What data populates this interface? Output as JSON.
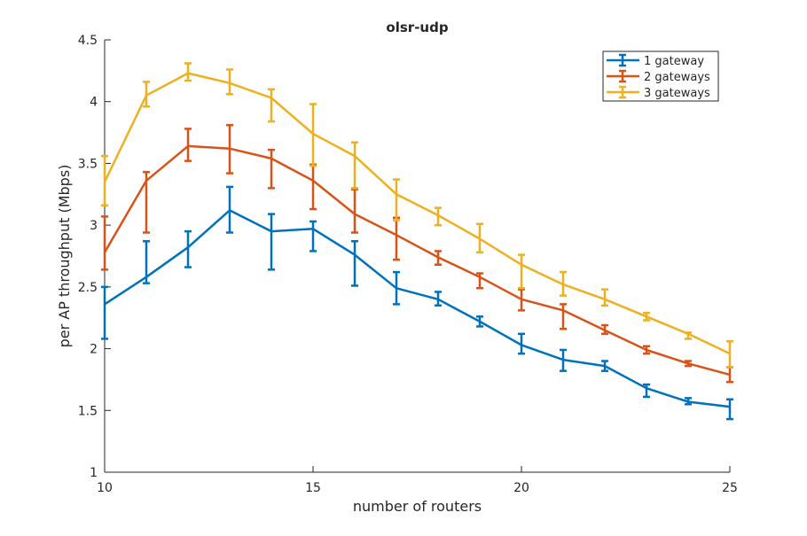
{
  "chart_data": {
    "type": "line",
    "title": "olsr-udp",
    "xlabel": "number of routers",
    "ylabel": "per AP throughput (Mbps)",
    "xlim": [
      10,
      25
    ],
    "ylim": [
      1,
      4.5
    ],
    "x_ticks": [
      "10",
      "15",
      "20",
      "25"
    ],
    "y_ticks": [
      "1",
      "1.5",
      "2",
      "2.5",
      "3",
      "3.5",
      "4",
      "4.5"
    ],
    "x": [
      10,
      11,
      12,
      13,
      14,
      15,
      16,
      17,
      18,
      19,
      20,
      21,
      22,
      23,
      24,
      25
    ],
    "legend_position": "top-right",
    "grid": false,
    "series": [
      {
        "name": "1 gateway",
        "color": "#0072BD",
        "values": [
          2.36,
          2.58,
          2.82,
          3.12,
          2.95,
          2.97,
          2.76,
          2.49,
          2.4,
          2.22,
          2.03,
          1.91,
          1.86,
          1.68,
          1.57,
          1.53
        ],
        "error_low": [
          2.08,
          2.53,
          2.66,
          2.94,
          2.64,
          2.79,
          2.51,
          2.36,
          2.35,
          2.18,
          1.96,
          1.82,
          1.82,
          1.61,
          1.55,
          1.43
        ],
        "error_high": [
          2.5,
          2.87,
          2.95,
          3.31,
          3.09,
          3.03,
          2.87,
          2.62,
          2.46,
          2.26,
          2.12,
          1.99,
          1.9,
          1.71,
          1.6,
          1.59
        ]
      },
      {
        "name": "2 gateways",
        "color": "#D95319",
        "values": [
          2.78,
          3.36,
          3.64,
          3.62,
          3.54,
          3.36,
          3.09,
          2.92,
          2.74,
          2.58,
          2.4,
          2.31,
          2.15,
          1.99,
          1.88,
          1.79
        ],
        "error_low": [
          2.64,
          2.94,
          3.52,
          3.42,
          3.3,
          3.13,
          2.94,
          2.72,
          2.68,
          2.49,
          2.31,
          2.16,
          2.12,
          1.96,
          1.86,
          1.73
        ],
        "error_high": [
          3.07,
          3.43,
          3.78,
          3.81,
          3.61,
          3.49,
          3.29,
          3.06,
          2.79,
          2.61,
          2.48,
          2.36,
          2.19,
          2.02,
          1.9,
          1.85
        ]
      },
      {
        "name": "3 gateways",
        "color": "#EDB120",
        "values": [
          3.35,
          4.05,
          4.23,
          4.15,
          4.03,
          3.74,
          3.56,
          3.25,
          3.08,
          2.89,
          2.68,
          2.52,
          2.4,
          2.26,
          2.12,
          1.96
        ],
        "error_low": [
          3.16,
          3.96,
          4.17,
          4.06,
          3.84,
          3.48,
          3.3,
          3.04,
          3.0,
          2.78,
          2.49,
          2.43,
          2.35,
          2.23,
          2.08,
          1.85
        ],
        "error_high": [
          3.56,
          4.16,
          4.31,
          4.26,
          4.1,
          3.98,
          3.67,
          3.37,
          3.14,
          3.01,
          2.76,
          2.62,
          2.48,
          2.29,
          2.13,
          2.06
        ]
      }
    ]
  }
}
